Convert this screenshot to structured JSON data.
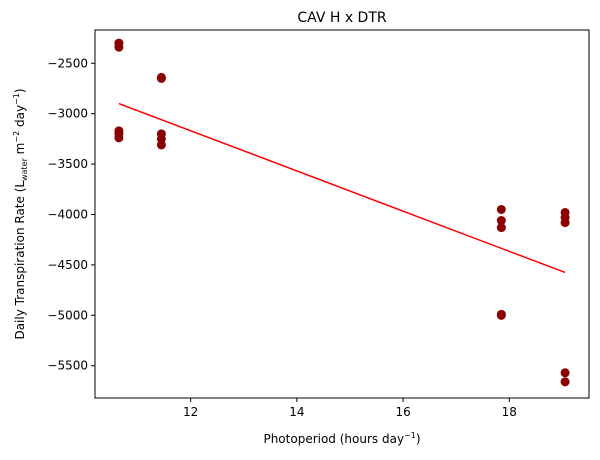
{
  "chart_data": {
    "type": "scatter",
    "title": "CAV H x DTR",
    "xlabel": {
      "main": "Photoperiod (hours day",
      "sup": "−1",
      "close": ")"
    },
    "ylabel": {
      "part1": "Daily Transpiration Rate (L",
      "sub": "water",
      "part2": " m",
      "sup1": "−2",
      "part3": " day",
      "sup2": "−1",
      "close": ")"
    },
    "xlim": [
      10.2,
      19.5
    ],
    "ylim": [
      -5820,
      -2170
    ],
    "xticks": [
      12,
      14,
      16,
      18
    ],
    "xtick_labels": [
      "12",
      "14",
      "16",
      "18"
    ],
    "yticks": [
      -5500,
      -5000,
      -4500,
      -4000,
      -3500,
      -3000,
      -2500
    ],
    "ytick_labels": [
      "−5500",
      "−5000",
      "−4500",
      "−4000",
      "−3500",
      "−3000",
      "−2500"
    ],
    "grid": false,
    "marker_color": "#8b0000",
    "line_color": "#ff0000",
    "points": [
      {
        "x": 10.65,
        "y": -2300
      },
      {
        "x": 10.65,
        "y": -2340
      },
      {
        "x": 10.65,
        "y": -3170
      },
      {
        "x": 10.65,
        "y": -3200
      },
      {
        "x": 10.65,
        "y": -3240
      },
      {
        "x": 11.45,
        "y": -2640
      },
      {
        "x": 11.45,
        "y": -2650
      },
      {
        "x": 11.45,
        "y": -3200
      },
      {
        "x": 11.45,
        "y": -3250
      },
      {
        "x": 11.45,
        "y": -3310
      },
      {
        "x": 17.85,
        "y": -3950
      },
      {
        "x": 17.85,
        "y": -4060
      },
      {
        "x": 17.85,
        "y": -4130
      },
      {
        "x": 17.85,
        "y": -4990
      },
      {
        "x": 17.85,
        "y": -5000
      },
      {
        "x": 19.05,
        "y": -3980
      },
      {
        "x": 19.05,
        "y": -4030
      },
      {
        "x": 19.05,
        "y": -4080
      },
      {
        "x": 19.05,
        "y": -5570
      },
      {
        "x": 19.05,
        "y": -5660
      }
    ],
    "fit_line": {
      "x": [
        10.65,
        19.05
      ],
      "y": [
        -2900,
        -4575
      ]
    }
  }
}
